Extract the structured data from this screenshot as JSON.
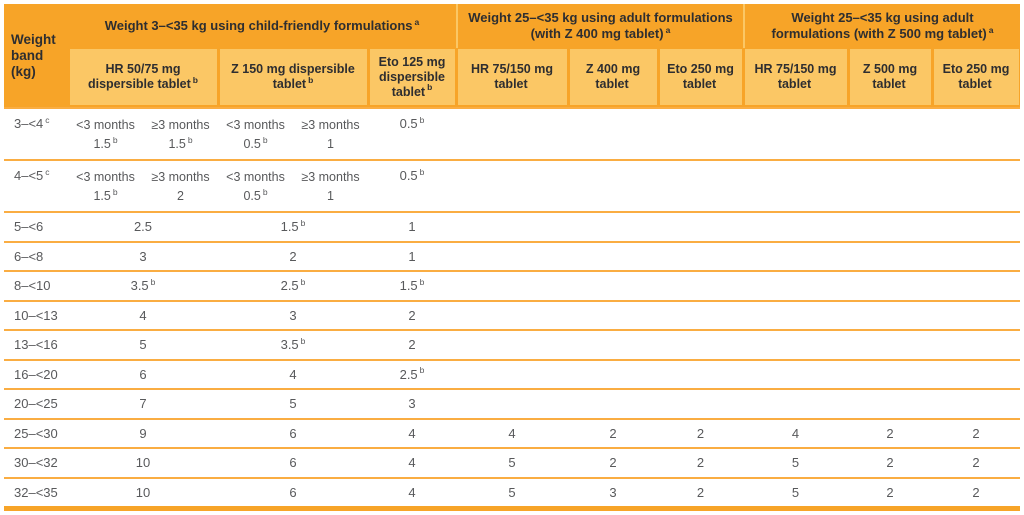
{
  "colors": {
    "header_orange": "#F7A428",
    "subheader_orange": "#FBC765",
    "separator_orange": "#FAAD42",
    "body_text": "#58595B",
    "header_text": "#2E2E30"
  },
  "table": {
    "corner": "Weight band (kg)",
    "groups": [
      {
        "title": "Weight 3–<35 kg using child-friendly formulations",
        "sup": "a",
        "columns": [
          {
            "label": "HR 50/75 mg\ndispersible tablet",
            "sup": "b"
          },
          {
            "label": "Z 150 mg dispersible\ntablet",
            "sup": "b"
          },
          {
            "label": "Eto 125 mg\ndispersible\ntablet",
            "sup": "b"
          }
        ]
      },
      {
        "title": "Weight 25–<35 kg using adult formulations\n(with Z 400 mg tablet)",
        "sup": "a",
        "columns": [
          {
            "label": "HR 75/150 mg\ntablet",
            "sup": ""
          },
          {
            "label": "Z 400 mg\ntablet",
            "sup": ""
          },
          {
            "label": "Eto 250 mg\ntablet",
            "sup": ""
          }
        ]
      },
      {
        "title": "Weight 25–<35 kg using adult\nformulations (with Z 500 mg tablet)",
        "sup": "a",
        "columns": [
          {
            "label": "HR 75/150 mg\ntablet",
            "sup": ""
          },
          {
            "label": "Z 500 mg\ntablet",
            "sup": ""
          },
          {
            "label": "Eto 250 mg\ntablet",
            "sup": ""
          }
        ]
      }
    ],
    "rows": [
      {
        "band": "3–<4",
        "band_sup": "c",
        "split": {
          "hr": [
            {
              "age": "<3 months",
              "dose": "1.5^b"
            },
            {
              "age": "≥3 months",
              "dose": "1.5^b"
            }
          ],
          "z": [
            {
              "age": "<3 months",
              "dose": "0.5^b"
            },
            {
              "age": "≥3 months",
              "dose": "1"
            }
          ],
          "eto": "0.5^b"
        }
      },
      {
        "band": "4–<5",
        "band_sup": "c",
        "split": {
          "hr": [
            {
              "age": "<3 months",
              "dose": "1.5^b"
            },
            {
              "age": "≥3 months",
              "dose": "2"
            }
          ],
          "z": [
            {
              "age": "<3 months",
              "dose": "0.5^b"
            },
            {
              "age": "≥3 months",
              "dose": "1"
            }
          ],
          "eto": "0.5^b"
        }
      },
      {
        "band": "5–<6",
        "cells": [
          "2.5",
          "1.5^b",
          "1",
          "",
          "",
          "",
          "",
          "",
          ""
        ]
      },
      {
        "band": "6–<8",
        "cells": [
          "3",
          "2",
          "1",
          "",
          "",
          "",
          "",
          "",
          ""
        ]
      },
      {
        "band": "8–<10",
        "cells": [
          "3.5^b",
          "2.5^b",
          "1.5^b",
          "",
          "",
          "",
          "",
          "",
          ""
        ]
      },
      {
        "band": "10–<13",
        "cells": [
          "4",
          "3",
          "2",
          "",
          "",
          "",
          "",
          "",
          ""
        ]
      },
      {
        "band": "13–<16",
        "cells": [
          "5",
          "3.5^b",
          "2",
          "",
          "",
          "",
          "",
          "",
          ""
        ]
      },
      {
        "band": "16–<20",
        "cells": [
          "6",
          "4",
          "2.5^b",
          "",
          "",
          "",
          "",
          "",
          ""
        ]
      },
      {
        "band": "20–<25",
        "cells": [
          "7",
          "5",
          "3",
          "",
          "",
          "",
          "",
          "",
          ""
        ]
      },
      {
        "band": "25–<30",
        "cells": [
          "9",
          "6",
          "4",
          "4",
          "2",
          "2",
          "4",
          "2",
          "2"
        ]
      },
      {
        "band": "30–<32",
        "cells": [
          "10",
          "6",
          "4",
          "5",
          "2",
          "2",
          "5",
          "2",
          "2"
        ]
      },
      {
        "band": "32–<35",
        "cells": [
          "10",
          "6",
          "4",
          "5",
          "3",
          "2",
          "5",
          "2",
          "2"
        ]
      }
    ]
  }
}
